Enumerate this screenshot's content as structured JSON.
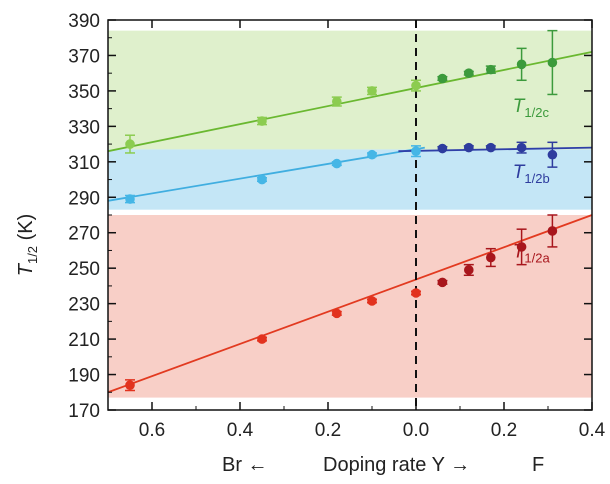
{
  "chart_data": {
    "type": "scatter",
    "title": "",
    "ylabel": {
      "main": "T",
      "sub": "1/2",
      "unit": " (K)"
    },
    "xlabel": {
      "left": "Br ←",
      "center": "Doping rate Y  →",
      "right": "F"
    },
    "x_reversed_left": true,
    "xlim": [
      -0.7,
      0.4
    ],
    "ylim": [
      170,
      390
    ],
    "x_ticks": [
      -0.6,
      -0.4,
      -0.2,
      0.0,
      0.2,
      0.4
    ],
    "x_tick_labels": [
      "0.6",
      "0.4",
      "0.2",
      "0.0",
      "0.2",
      "0.4"
    ],
    "y_ticks": [
      170,
      190,
      210,
      230,
      250,
      270,
      290,
      310,
      330,
      350,
      370,
      390
    ],
    "vline_x": 0.0,
    "bands": [
      {
        "name": "green",
        "y0": 317,
        "y1": 384,
        "color": "#dff0cc"
      },
      {
        "name": "blue",
        "y0": 283,
        "y1": 317,
        "color": "#c4e6f6"
      },
      {
        "name": "red",
        "y0": 177,
        "y1": 280,
        "color": "#f8cfc7"
      }
    ],
    "series": [
      {
        "name": "T",
        "sub": "1/2c",
        "color_left": "#8ccc50",
        "color_right": "#3c9a3c",
        "line_color": "#6ab830",
        "label_at": [
          0.22,
          338
        ],
        "fit": [
          [
            -0.7,
            316
          ],
          [
            0.4,
            372
          ]
        ],
        "points": [
          {
            "x": -0.65,
            "y": 320,
            "err": 5
          },
          {
            "x": -0.35,
            "y": 333,
            "err": 2
          },
          {
            "x": -0.18,
            "y": 344,
            "err": 2.5
          },
          {
            "x": -0.1,
            "y": 350,
            "err": 2
          },
          {
            "x": 0.0,
            "y": 353,
            "err": 3
          },
          {
            "x": 0.06,
            "y": 357,
            "err": 1
          },
          {
            "x": 0.12,
            "y": 360,
            "err": 1
          },
          {
            "x": 0.17,
            "y": 362,
            "err": 2
          },
          {
            "x": 0.24,
            "y": 365,
            "err": 9
          },
          {
            "x": 0.31,
            "y": 366,
            "err": 18
          }
        ]
      },
      {
        "name": "T",
        "sub": "1/2b",
        "color_left": "#45b6e6",
        "color_right": "#2e3c9e",
        "line_color": "#40aee0",
        "line2_color": "#2f3fa8",
        "label_at": [
          0.22,
          301
        ],
        "fit": [
          [
            -0.7,
            288
          ],
          [
            0.02,
            318
          ]
        ],
        "fit2": [
          [
            -0.04,
            316
          ],
          [
            0.4,
            318
          ]
        ],
        "points": [
          {
            "x": -0.65,
            "y": 289,
            "err": 2
          },
          {
            "x": -0.35,
            "y": 300,
            "err": 1
          },
          {
            "x": -0.18,
            "y": 309,
            "err": 1
          },
          {
            "x": -0.1,
            "y": 314,
            "err": 1
          },
          {
            "x": 0.0,
            "y": 316,
            "err": 3
          },
          {
            "x": 0.06,
            "y": 317.5,
            "err": 1
          },
          {
            "x": 0.12,
            "y": 318,
            "err": 1
          },
          {
            "x": 0.17,
            "y": 318,
            "err": 1
          },
          {
            "x": 0.24,
            "y": 318,
            "err": 3
          },
          {
            "x": 0.31,
            "y": 314,
            "err": 7
          }
        ]
      },
      {
        "name": "T",
        "sub": "1/2a",
        "color_left": "#e2321e",
        "color_right": "#a8161c",
        "line_color": "#e23a20",
        "label_at": [
          0.22,
          256
        ],
        "fit": [
          [
            -0.7,
            180
          ],
          [
            0.4,
            280
          ]
        ],
        "points": [
          {
            "x": -0.65,
            "y": 184,
            "err": 3
          },
          {
            "x": -0.35,
            "y": 210,
            "err": 1
          },
          {
            "x": -0.18,
            "y": 224.5,
            "err": 1
          },
          {
            "x": -0.1,
            "y": 231.5,
            "err": 1
          },
          {
            "x": 0.0,
            "y": 236,
            "err": 1
          },
          {
            "x": 0.06,
            "y": 242,
            "err": 1
          },
          {
            "x": 0.12,
            "y": 249,
            "err": 3
          },
          {
            "x": 0.17,
            "y": 256,
            "err": 5
          },
          {
            "x": 0.24,
            "y": 262,
            "err": 10
          },
          {
            "x": 0.31,
            "y": 271,
            "err": 9
          }
        ]
      }
    ]
  }
}
